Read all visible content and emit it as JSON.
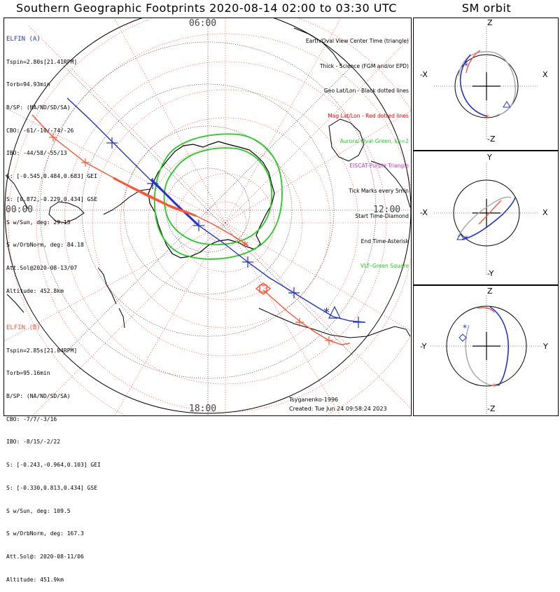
{
  "header": {
    "title": "Southern Geographic Footprints 2020-08-14 02:00 to 03:30 UTC",
    "sm_title": "SM orbit"
  },
  "clock_labels": {
    "top": "06:00",
    "left": "00:00",
    "right": "12:00",
    "bottom": "18:00"
  },
  "elfin_a": {
    "title": "ELFIN (A)",
    "color": "#2233cc",
    "lines": [
      "Tspin=2.80s[21.41RPM]",
      "Torb=94.93min",
      "B/SP: (NA/ND/SD/SA)",
      "CBO: -61/-10/-74/-26",
      "IBO: -44/58/-55/13",
      "S: [-0.545,0.484,0.683] GEI",
      "S: [0.872,-0.229,0.434] GSE",
      "S w/Sun, deg: 29.15",
      "S w/OrbNorm, deg: 84.18",
      "Att.Sol@2020-08-13/07",
      "Altitude: 452.8km"
    ]
  },
  "elfin_b": {
    "title": "ELFIN (B)",
    "color": "#ff5533",
    "lines": [
      "Tspin=2.85s[21.04RPM]",
      "Torb=95.16min",
      "B/SP: (NA/ND/SD/SA)",
      "CBO: -7/7/-3/16",
      "IBO: -8/15/-2/22",
      "S: [-0.243,-0.964,0.103] GEI",
      "S: [-0.330,0.813,0.434] GSE",
      "S w/Sun, deg: 109.5",
      "S w/OrbNorm, deg: 167.3",
      "Att.Sol@: 2020-08-11/06",
      "Altitude: 451.9km"
    ]
  },
  "legend": [
    {
      "text": "Earth/Oval View Center Time (triangle)",
      "color": "#000000"
    },
    {
      "text": "Thick - Science (FGM and/or EPD)",
      "color": "#000000"
    },
    {
      "text": "Geo Lat/Lon - Black dotted lines",
      "color": "#000000"
    },
    {
      "text": "Mag Lat/Lon - Red dotted lines",
      "color": "#ff0000"
    },
    {
      "text": "Auroral Oval-Green, kp=2",
      "color": "#22cc22"
    },
    {
      "text": "EISCAT-Purple Triangle",
      "color": "#cc33cc"
    },
    {
      "text": "Tick Marks every 5min",
      "color": "#000000"
    },
    {
      "text": "Start Time-Diamond",
      "color": "#000000"
    },
    {
      "text": "End Time-Asterisk",
      "color": "#000000"
    },
    {
      "text": "VLF-Green Square",
      "color": "#22cc22"
    }
  ],
  "footer": {
    "model": "Tsyganenko-1996",
    "created": "Created: Tue Jun 24 09:58:24 2023"
  },
  "sm_panels": [
    {
      "top": "Z",
      "bottom": "-Z",
      "left": "-X",
      "right": "X"
    },
    {
      "top": "Y",
      "bottom": "-Y",
      "left": "-X",
      "right": "X"
    },
    {
      "top": "Z",
      "bottom": "-Z",
      "left": "-Y",
      "right": "Y"
    }
  ],
  "colors": {
    "elfin_a": "#2233cc",
    "elfin_b": "#ff5533",
    "auroral_oval": "#22cc22",
    "mag_grid": "#ff0000",
    "geo_grid": "#000000",
    "sm_trail": "#aaaaaa"
  }
}
